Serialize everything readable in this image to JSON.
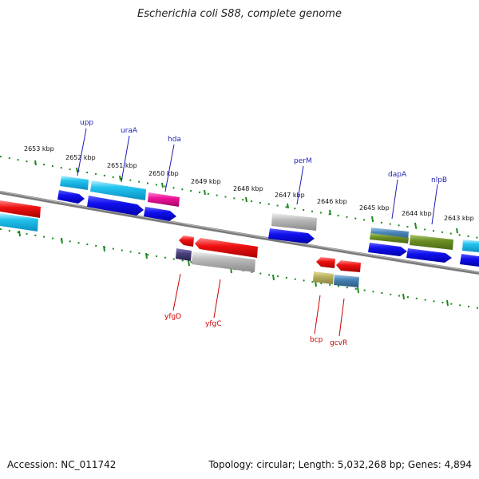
{
  "header": {
    "title": "Escherichia coli S88, complete genome"
  },
  "footer": {
    "accession": "Accession: NC_011742",
    "summary": "Topology: circular; Length: 5,032,268 bp; Genes: 4,894"
  },
  "scale_labels": [
    "2653 kbp",
    "2652 kbp",
    "2651 kbp",
    "2650 kbp",
    "2649 kbp",
    "2648 kbp",
    "2647 kbp",
    "2646 kbp",
    "2645 kbp",
    "2644 kbp",
    "2643 kbp"
  ],
  "gene_labels_top": [
    "upp",
    "uraA",
    "hda",
    "perM",
    "dapA",
    "nlpB"
  ],
  "gene_labels_bottom": [
    "yfgD",
    "yfgC",
    "bcp",
    "gcvR"
  ],
  "colors": {
    "forward_label": "#1f1fb4",
    "reverse_label": "#cc0000",
    "cyan": "#22c4ee",
    "blue": "#1010ee",
    "magenta": "#ee1199",
    "gray": "#b0b0b0",
    "red": "#ee1111",
    "olive": "#6b8e23",
    "steel": "#4682b4",
    "purple": "#48407a",
    "khaki": "#b8b060",
    "tick": "#1a8a1a"
  }
}
